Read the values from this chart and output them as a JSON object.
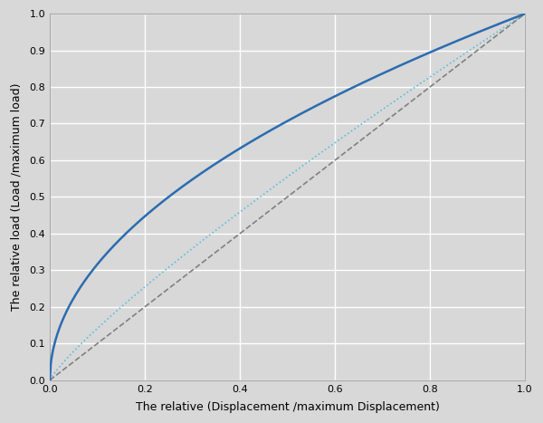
{
  "title": "",
  "xlabel": "The relative (Displacement /maximum Displacement)",
  "ylabel": "The relative load (Load /maximum load)",
  "xlim": [
    0,
    1.0
  ],
  "ylim": [
    0,
    1.0
  ],
  "xticks": [
    0,
    0.2,
    0.4,
    0.6,
    0.8,
    1.0
  ],
  "yticks": [
    0,
    0.1,
    0.2,
    0.3,
    0.4,
    0.5,
    0.6,
    0.7,
    0.8,
    0.9,
    1.0
  ],
  "background_color": "#d8d8d8",
  "curve_color": "#2b6cb0",
  "dotted_color": "#5bbcdd",
  "dashed_color": "#808080",
  "curve_power": 0.5,
  "dotted_slope": 1.05,
  "dotted_intercept": -0.05,
  "grid_color": "#ffffff",
  "grid_linewidth": 1.0,
  "curve_linewidth": 1.8,
  "dotted_linewidth": 1.2,
  "dashed_linewidth": 1.2
}
